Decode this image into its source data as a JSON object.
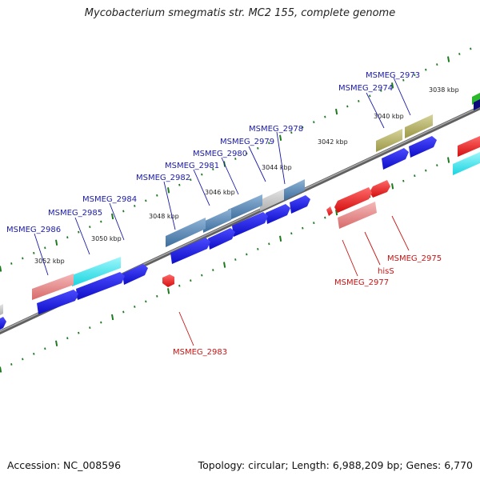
{
  "title": "Mycobacterium smegmatis str. MC2 155, complete genome",
  "footer": {
    "accession": "Accession: NC_008596",
    "summary": "Topology: circular; Length: 6,988,209 bp; Genes: 6,770"
  },
  "tick_labels": [
    "3038 kbp",
    "3040 kbp",
    "3042 kbp",
    "3044 kbp",
    "3046 kbp",
    "3048 kbp",
    "3050 kbp",
    "3052 kbp"
  ],
  "colors": {
    "backbone": "#808080",
    "forward_label": "#1a1aa8",
    "reverse_label": "#c81414",
    "tick": "#1e7a1e",
    "blue": "#1a1adc",
    "red": "#e01818",
    "steel": "#4d7fb0",
    "cyan": "#26e0ea",
    "pink": "#e88a8a",
    "olive": "#b0ac5a"
  },
  "forward_genes": [
    {
      "name": "MSMEG_2973"
    },
    {
      "name": "MSMEG_2974"
    },
    {
      "name": "MSMEG_2978"
    },
    {
      "name": "MSMEG_2979"
    },
    {
      "name": "MSMEG_2980"
    },
    {
      "name": "MSMEG_2981"
    },
    {
      "name": "MSMEG_2982"
    },
    {
      "name": "MSMEG_2984"
    },
    {
      "name": "MSMEG_2985"
    },
    {
      "name": "MSMEG_2986"
    }
  ],
  "reverse_genes": [
    {
      "name": "MSMEG_2975"
    },
    {
      "name": "hisS"
    },
    {
      "name": "MSMEG_2977"
    },
    {
      "name": "MSMEG_2983"
    }
  ]
}
